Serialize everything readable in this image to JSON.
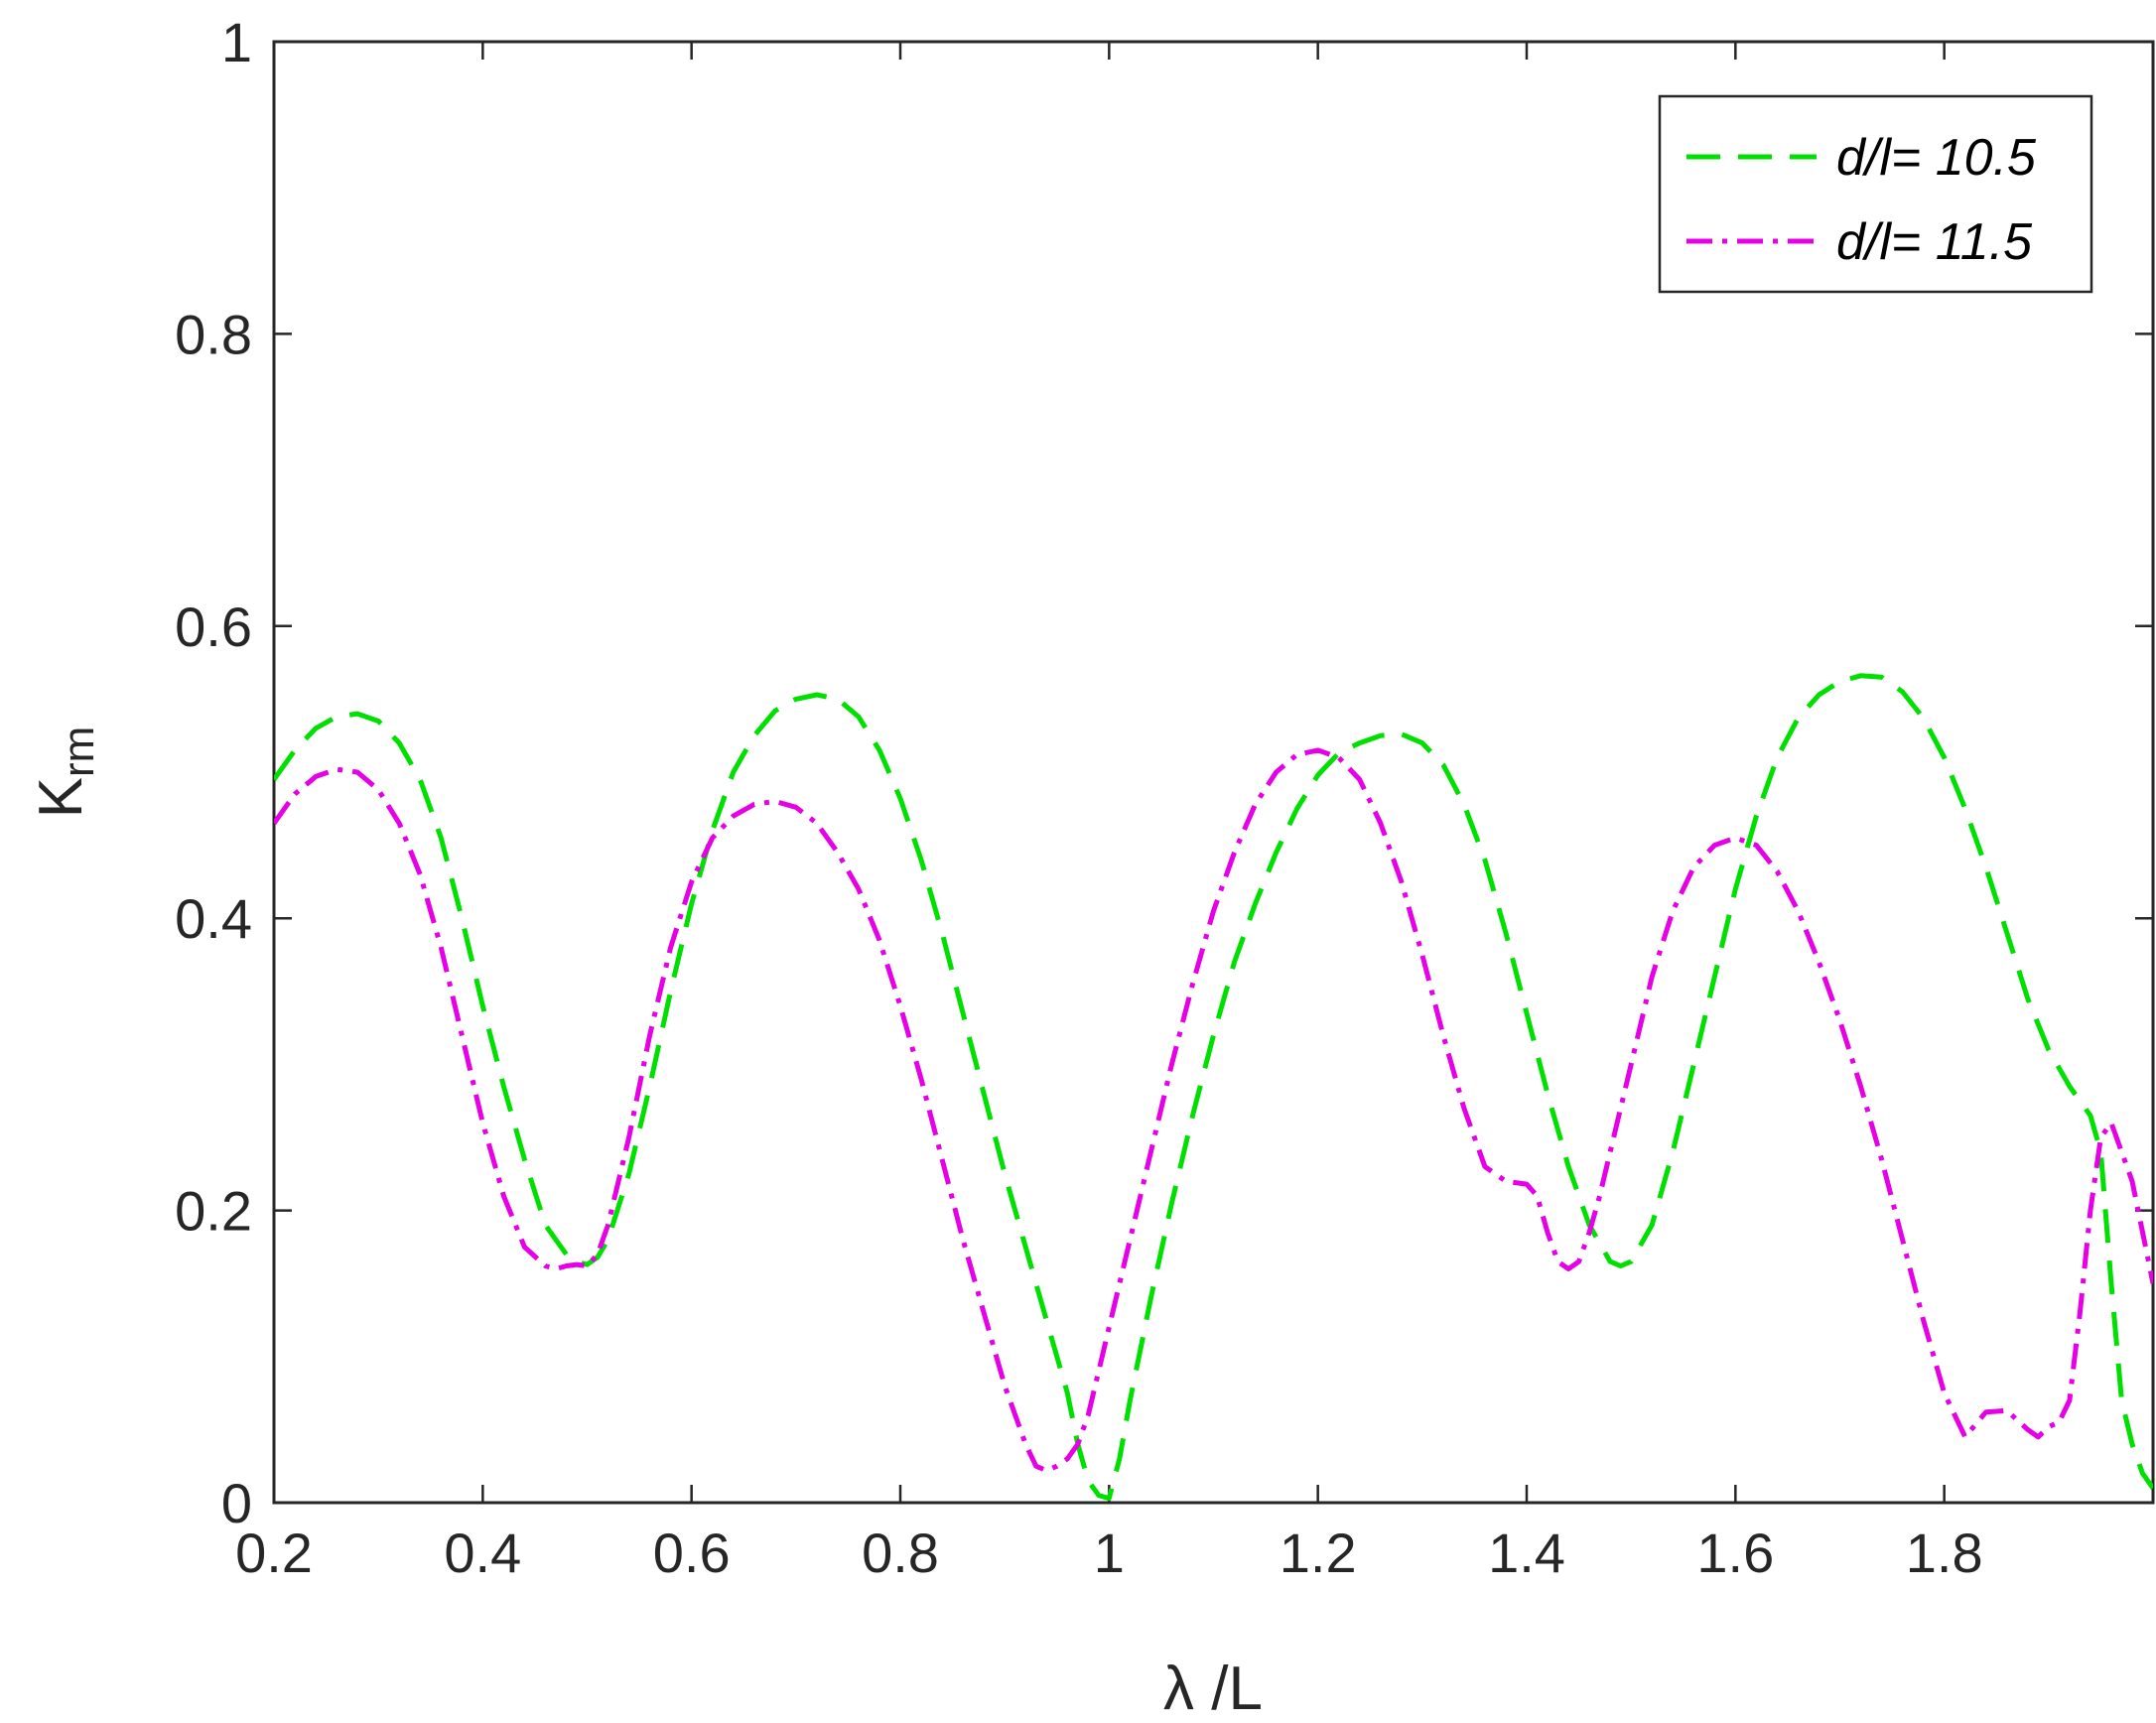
{
  "chart_data": {
    "type": "line",
    "title": "",
    "xlabel": "λ /L",
    "ylabel": "K",
    "ylabel_subscript": "rm",
    "xlim": [
      0.2,
      2.0
    ],
    "ylim": [
      0,
      1
    ],
    "x_ticks": [
      0.2,
      0.4,
      0.6,
      0.8,
      1.0,
      1.2,
      1.4,
      1.6,
      1.8
    ],
    "x_tick_labels": [
      "0.2",
      "0.4",
      "0.6",
      "0.8",
      "1",
      "1.2",
      "1.4",
      "1.6",
      "1.8"
    ],
    "y_ticks": [
      0,
      0.2,
      0.4,
      0.6,
      0.8,
      1.0
    ],
    "y_tick_labels": [
      "0",
      "0.2",
      "0.4",
      "0.6",
      "0.8",
      "1"
    ],
    "grid": false,
    "legend_position": "top-right",
    "series": [
      {
        "name": "d/l= 10.5",
        "color": "#00E000",
        "style": "dashed",
        "x": [
          0.2,
          0.22,
          0.24,
          0.26,
          0.28,
          0.3,
          0.32,
          0.34,
          0.36,
          0.38,
          0.4,
          0.42,
          0.44,
          0.46,
          0.48,
          0.49,
          0.5,
          0.51,
          0.52,
          0.54,
          0.56,
          0.58,
          0.6,
          0.62,
          0.64,
          0.66,
          0.68,
          0.7,
          0.72,
          0.74,
          0.76,
          0.78,
          0.8,
          0.82,
          0.84,
          0.86,
          0.88,
          0.9,
          0.92,
          0.94,
          0.96,
          0.97,
          0.98,
          0.99,
          1.0,
          1.01,
          1.02,
          1.04,
          1.06,
          1.08,
          1.1,
          1.12,
          1.14,
          1.16,
          1.18,
          1.2,
          1.22,
          1.24,
          1.26,
          1.28,
          1.3,
          1.32,
          1.34,
          1.36,
          1.38,
          1.4,
          1.42,
          1.44,
          1.46,
          1.48,
          1.49,
          1.5,
          1.52,
          1.54,
          1.56,
          1.58,
          1.6,
          1.62,
          1.64,
          1.66,
          1.68,
          1.7,
          1.72,
          1.74,
          1.76,
          1.78,
          1.8,
          1.82,
          1.84,
          1.86,
          1.88,
          1.9,
          1.92,
          1.94,
          1.95,
          1.96,
          1.97,
          1.98,
          1.99,
          2.0
        ],
        "y": [
          0.495,
          0.515,
          0.53,
          0.538,
          0.54,
          0.535,
          0.52,
          0.495,
          0.455,
          0.4,
          0.34,
          0.285,
          0.235,
          0.19,
          0.17,
          0.165,
          0.163,
          0.168,
          0.18,
          0.225,
          0.285,
          0.35,
          0.41,
          0.46,
          0.5,
          0.525,
          0.542,
          0.55,
          0.553,
          0.55,
          0.538,
          0.515,
          0.482,
          0.44,
          0.39,
          0.335,
          0.28,
          0.225,
          0.175,
          0.125,
          0.075,
          0.04,
          0.015,
          0.005,
          0.003,
          0.03,
          0.07,
          0.14,
          0.205,
          0.265,
          0.32,
          0.37,
          0.41,
          0.445,
          0.475,
          0.498,
          0.513,
          0.52,
          0.525,
          0.526,
          0.52,
          0.505,
          0.478,
          0.44,
          0.39,
          0.335,
          0.28,
          0.23,
          0.19,
          0.165,
          0.162,
          0.165,
          0.19,
          0.24,
          0.3,
          0.36,
          0.42,
          0.47,
          0.51,
          0.537,
          0.553,
          0.562,
          0.566,
          0.565,
          0.555,
          0.537,
          0.51,
          0.475,
          0.435,
          0.39,
          0.345,
          0.31,
          0.285,
          0.265,
          0.24,
          0.15,
          0.07,
          0.04,
          0.02,
          0.01
        ]
      },
      {
        "name": "d/l= 11.5",
        "color": "#E600E6",
        "style": "dashdot",
        "x": [
          0.2,
          0.22,
          0.24,
          0.26,
          0.28,
          0.3,
          0.32,
          0.34,
          0.36,
          0.38,
          0.4,
          0.42,
          0.44,
          0.46,
          0.47,
          0.48,
          0.49,
          0.5,
          0.51,
          0.52,
          0.54,
          0.56,
          0.58,
          0.6,
          0.62,
          0.64,
          0.66,
          0.68,
          0.7,
          0.72,
          0.74,
          0.76,
          0.78,
          0.8,
          0.82,
          0.84,
          0.86,
          0.88,
          0.9,
          0.92,
          0.93,
          0.94,
          0.95,
          0.96,
          0.97,
          0.98,
          0.99,
          1.0,
          1.02,
          1.04,
          1.06,
          1.08,
          1.1,
          1.12,
          1.14,
          1.16,
          1.18,
          1.2,
          1.22,
          1.24,
          1.26,
          1.28,
          1.3,
          1.32,
          1.34,
          1.36,
          1.38,
          1.4,
          1.41,
          1.42,
          1.43,
          1.44,
          1.45,
          1.46,
          1.47,
          1.48,
          1.5,
          1.52,
          1.54,
          1.56,
          1.58,
          1.6,
          1.62,
          1.64,
          1.66,
          1.68,
          1.7,
          1.72,
          1.74,
          1.76,
          1.78,
          1.8,
          1.82,
          1.84,
          1.86,
          1.88,
          1.89,
          1.9,
          1.91,
          1.92,
          1.93,
          1.94,
          1.95,
          1.96,
          1.98,
          2.0
        ],
        "y": [
          0.465,
          0.485,
          0.497,
          0.502,
          0.5,
          0.488,
          0.465,
          0.43,
          0.38,
          0.32,
          0.26,
          0.21,
          0.175,
          0.162,
          0.16,
          0.162,
          0.163,
          0.162,
          0.17,
          0.19,
          0.25,
          0.32,
          0.38,
          0.425,
          0.455,
          0.47,
          0.478,
          0.48,
          0.476,
          0.465,
          0.445,
          0.42,
          0.385,
          0.34,
          0.29,
          0.235,
          0.18,
          0.13,
          0.08,
          0.04,
          0.025,
          0.022,
          0.025,
          0.03,
          0.04,
          0.06,
          0.09,
          0.12,
          0.18,
          0.24,
          0.3,
          0.355,
          0.405,
          0.445,
          0.478,
          0.5,
          0.512,
          0.515,
          0.51,
          0.495,
          0.465,
          0.425,
          0.375,
          0.32,
          0.27,
          0.23,
          0.22,
          0.218,
          0.21,
          0.185,
          0.165,
          0.16,
          0.165,
          0.185,
          0.21,
          0.24,
          0.3,
          0.36,
          0.405,
          0.435,
          0.45,
          0.455,
          0.45,
          0.432,
          0.405,
          0.37,
          0.33,
          0.285,
          0.235,
          0.18,
          0.125,
          0.075,
          0.045,
          0.062,
          0.063,
          0.05,
          0.045,
          0.052,
          0.055,
          0.07,
          0.13,
          0.2,
          0.25,
          0.26,
          0.22,
          0.15
        ]
      }
    ]
  }
}
